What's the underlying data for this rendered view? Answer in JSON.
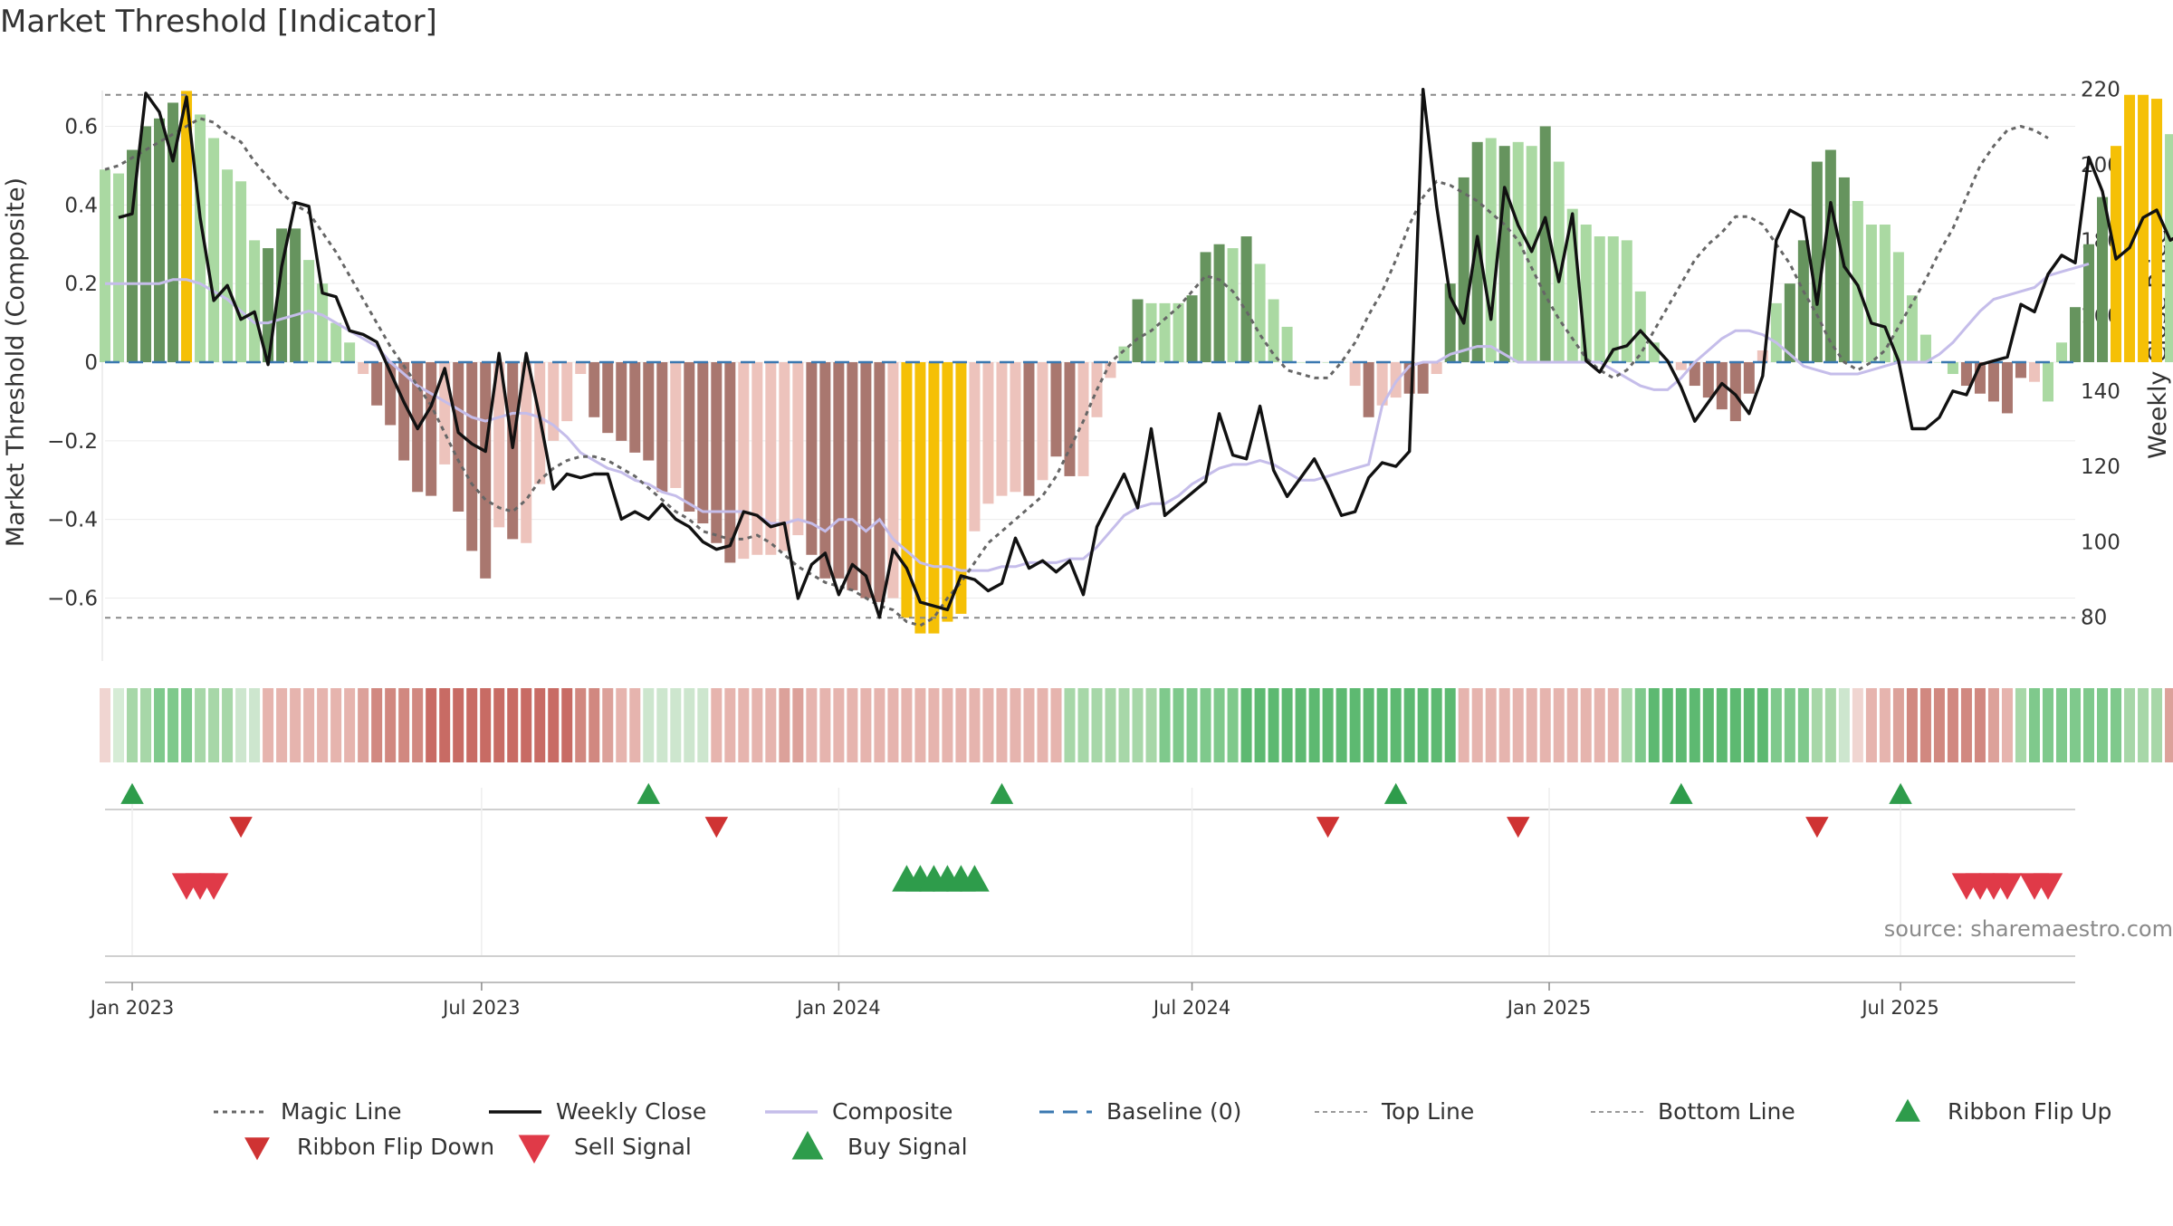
{
  "title": "Market Threshold [Indicator]",
  "source": "source: sharemaestro.com",
  "chart_data": {
    "type": "bar",
    "title": "Market Threshold [Indicator]",
    "left_axis": {
      "label": "Market Threshold (Composite)",
      "range": [
        -0.76,
        0.76
      ],
      "ticks": [
        {
          "v": 0.6,
          "t": "0.6"
        },
        {
          "v": 0.4,
          "t": "0.4"
        },
        {
          "v": 0.2,
          "t": "0.2"
        },
        {
          "v": 0,
          "t": "0"
        },
        {
          "v": -0.2,
          "t": "−0.2"
        },
        {
          "v": -0.4,
          "t": "−0.4"
        },
        {
          "v": -0.6,
          "t": "−0.6"
        }
      ]
    },
    "right_axis": {
      "label": "Weekly Close Price",
      "range": [
        68.4,
        226.9
      ],
      "ticks": [
        {
          "v": 220,
          "t": "220"
        },
        {
          "v": 200,
          "t": "200"
        },
        {
          "v": 180,
          "t": "180"
        },
        {
          "v": 160,
          "t": "160"
        },
        {
          "v": 140,
          "t": "140"
        },
        {
          "v": 120,
          "t": "120"
        },
        {
          "v": 100,
          "t": "100"
        },
        {
          "v": 80,
          "t": "80"
        }
      ]
    },
    "x_axis": {
      "start": "2022-12-19",
      "end": "2025-09-29",
      "ticks": [
        {
          "date": "2023-01-02",
          "label": "Jan 2023"
        },
        {
          "date": "2023-07-01",
          "label": "Jul 2023"
        },
        {
          "date": "2024-01-01",
          "label": "Jan 2024"
        },
        {
          "date": "2024-07-01",
          "label": "Jul 2024"
        },
        {
          "date": "2025-01-01",
          "label": "Jan 2025"
        },
        {
          "date": "2025-07-01",
          "label": "Jul 2025"
        }
      ]
    },
    "top_line": 0.68,
    "bottom_line": -0.65,
    "baseline": 0,
    "bars": {
      "start": "2022-12-19",
      "interval_days": 7,
      "composite": [
        0.49,
        0.48,
        0.54,
        0.6,
        0.62,
        0.66,
        0.69,
        0.63,
        0.57,
        0.49,
        0.46,
        0.31,
        0.29,
        0.34,
        0.34,
        0.26,
        0.2,
        0.1,
        0.05,
        -0.03,
        -0.11,
        -0.16,
        -0.25,
        -0.33,
        -0.34,
        -0.26,
        -0.38,
        -0.48,
        -0.55,
        -0.42,
        -0.45,
        -0.46,
        -0.31,
        -0.2,
        -0.15,
        -0.03,
        -0.14,
        -0.18,
        -0.2,
        -0.23,
        -0.25,
        -0.33,
        -0.32,
        -0.38,
        -0.41,
        -0.46,
        -0.51,
        -0.5,
        -0.49,
        -0.49,
        -0.48,
        -0.44,
        -0.49,
        -0.55,
        -0.55,
        -0.58,
        -0.6,
        -0.61,
        -0.6,
        -0.65,
        -0.69,
        -0.69,
        -0.66,
        -0.64,
        -0.43,
        -0.36,
        -0.34,
        -0.33,
        -0.34,
        -0.3,
        -0.24,
        -0.29,
        -0.29,
        -0.14,
        -0.04,
        0.04,
        0.16,
        0.15,
        0.15,
        0.15,
        0.17,
        0.28,
        0.3,
        0.29,
        0.32,
        0.25,
        0.16,
        0.09,
        0.0,
        0.0,
        0.0,
        0.0,
        -0.06,
        -0.14,
        -0.11,
        -0.09,
        -0.08,
        -0.08,
        -0.03,
        0.2,
        0.47,
        0.56,
        0.57,
        0.55,
        0.56,
        0.55,
        0.6,
        0.51,
        0.39,
        0.35,
        0.32,
        0.32,
        0.31,
        0.18,
        0.05,
        0.0,
        -0.02,
        -0.06,
        -0.09,
        -0.12,
        -0.15,
        -0.08,
        0.03,
        0.15,
        0.2,
        0.31,
        0.51,
        0.54,
        0.47,
        0.41,
        0.35,
        0.35,
        0.28,
        0.17,
        0.07,
        0.0,
        -0.03,
        -0.06,
        -0.08,
        -0.1,
        -0.13,
        -0.04,
        -0.05,
        -0.1,
        0.05,
        0.14,
        0.3,
        0.42,
        0.55,
        0.68,
        0.68,
        0.67,
        0.58,
        0.65,
        0.68,
        0.58,
        0.52,
        0.57
      ],
      "colors": [
        "#aad9a2",
        "#aad9a2",
        "#66945e",
        "#66945e",
        "#66945e",
        "#66945e",
        "#f5c006",
        "#aad9a2",
        "#aad9a2",
        "#aad9a2",
        "#aad9a2",
        "#aad9a2",
        "#66945e",
        "#66945e",
        "#66945e",
        "#aad9a2",
        "#aad9a2",
        "#aad9a2",
        "#aad9a2",
        "#edc3bc",
        "#a9776f",
        "#a9776f",
        "#a9776f",
        "#a9776f",
        "#a9776f",
        "#edc3bc",
        "#a9776f",
        "#a9776f",
        "#a9776f",
        "#edc3bc",
        "#a9776f",
        "#edc3bc",
        "#edc3bc",
        "#edc3bc",
        "#edc3bc",
        "#edc3bc",
        "#a9776f",
        "#a9776f",
        "#a9776f",
        "#a9776f",
        "#a9776f",
        "#a9776f",
        "#edc3bc",
        "#a9776f",
        "#a9776f",
        "#a9776f",
        "#a9776f",
        "#edc3bc",
        "#edc3bc",
        "#edc3bc",
        "#edc3bc",
        "#edc3bc",
        "#a9776f",
        "#a9776f",
        "#a9776f",
        "#a9776f",
        "#a9776f",
        "#a9776f",
        "#edc3bc",
        "#f5c006",
        "#f5c006",
        "#f5c006",
        "#f5c006",
        "#f5c006",
        "#edc3bc",
        "#edc3bc",
        "#edc3bc",
        "#edc3bc",
        "#a9776f",
        "#edc3bc",
        "#a9776f",
        "#a9776f",
        "#edc3bc",
        "#edc3bc",
        "#edc3bc",
        "#aad9a2",
        "#66945e",
        "#aad9a2",
        "#aad9a2",
        "#aad9a2",
        "#66945e",
        "#66945e",
        "#66945e",
        "#aad9a2",
        "#66945e",
        "#aad9a2",
        "#aad9a2",
        "#aad9a2",
        "#aad9a2",
        "#aad9a2",
        "#aad9a2",
        "#aad9a2",
        "#edc3bc",
        "#a9776f",
        "#edc3bc",
        "#edc3bc",
        "#a9776f",
        "#a9776f",
        "#edc3bc",
        "#66945e",
        "#66945e",
        "#66945e",
        "#aad9a2",
        "#66945e",
        "#aad9a2",
        "#aad9a2",
        "#66945e",
        "#aad9a2",
        "#aad9a2",
        "#aad9a2",
        "#aad9a2",
        "#aad9a2",
        "#aad9a2",
        "#aad9a2",
        "#aad9a2",
        "#aad9a2",
        "#edc3bc",
        "#a9776f",
        "#a9776f",
        "#a9776f",
        "#a9776f",
        "#a9776f",
        "#edc3bc",
        "#aad9a2",
        "#66945e",
        "#66945e",
        "#66945e",
        "#66945e",
        "#66945e",
        "#aad9a2",
        "#aad9a2",
        "#aad9a2",
        "#aad9a2",
        "#aad9a2",
        "#aad9a2",
        "#aad9a2",
        "#aad9a2",
        "#a9776f",
        "#a9776f",
        "#a9776f",
        "#a9776f",
        "#a9776f",
        "#edc3bc",
        "#aad9a2",
        "#aad9a2",
        "#66945e",
        "#66945e",
        "#66945e",
        "#f5c006",
        "#f5c006",
        "#f5c006",
        "#f5c006",
        "#aad9a2",
        "#f5c006",
        "#f5c006",
        "#aad9a2",
        "#aad9a2",
        "#66945e"
      ]
    },
    "weekly_close": {
      "start": "2022-12-26",
      "interval_days": 7,
      "values": [
        186,
        187,
        219,
        214,
        201,
        218,
        186,
        164,
        168,
        159,
        161,
        147,
        173,
        190,
        189,
        166,
        165,
        156,
        155,
        153,
        145,
        137,
        130,
        136,
        146,
        129,
        126,
        124,
        150,
        125,
        150,
        133,
        114,
        118,
        117,
        118,
        118,
        106,
        108,
        106,
        110,
        106,
        104,
        100,
        98,
        99,
        108,
        107,
        104,
        105,
        85,
        94,
        97,
        86,
        94,
        91,
        80,
        98,
        93,
        84,
        83,
        82,
        91,
        90,
        87,
        89,
        101,
        93,
        95,
        92,
        95,
        86,
        104,
        111,
        118,
        109,
        130,
        107,
        110,
        113,
        116,
        134,
        123,
        122,
        136,
        119,
        112,
        117,
        122,
        115,
        107,
        108,
        117,
        121,
        120,
        124,
        220,
        189,
        165,
        158,
        181,
        159,
        194,
        184,
        177,
        186,
        169,
        187,
        148,
        145,
        151,
        152,
        156,
        152,
        148,
        141,
        132,
        137,
        142,
        139,
        134,
        144,
        180,
        188,
        186,
        163,
        190,
        173,
        168,
        158,
        157,
        148,
        130,
        130,
        133,
        140,
        139,
        147,
        148,
        149,
        163,
        161,
        171,
        176,
        174,
        202,
        193,
        175,
        178,
        186,
        188,
        180,
        182,
        176,
        207
      ]
    },
    "magic_line": {
      "start": "2022-12-19",
      "interval_days": 7,
      "values": [
        0.49,
        0.5,
        0.52,
        0.54,
        0.56,
        0.58,
        0.6,
        0.62,
        0.61,
        0.58,
        0.56,
        0.51,
        0.47,
        0.43,
        0.4,
        0.38,
        0.33,
        0.28,
        0.22,
        0.16,
        0.1,
        0.04,
        -0.01,
        -0.06,
        -0.11,
        -0.18,
        -0.25,
        -0.31,
        -0.35,
        -0.37,
        -0.38,
        -0.35,
        -0.3,
        -0.27,
        -0.25,
        -0.24,
        -0.24,
        -0.25,
        -0.27,
        -0.29,
        -0.32,
        -0.35,
        -0.38,
        -0.4,
        -0.43,
        -0.44,
        -0.45,
        -0.45,
        -0.44,
        -0.46,
        -0.49,
        -0.52,
        -0.54,
        -0.56,
        -0.57,
        -0.58,
        -0.6,
        -0.62,
        -0.63,
        -0.66,
        -0.67,
        -0.65,
        -0.6,
        -0.56,
        -0.51,
        -0.46,
        -0.43,
        -0.4,
        -0.37,
        -0.34,
        -0.29,
        -0.22,
        -0.15,
        -0.07,
        0.0,
        0.03,
        0.06,
        0.08,
        0.11,
        0.14,
        0.18,
        0.22,
        0.21,
        0.18,
        0.13,
        0.07,
        0.02,
        -0.02,
        -0.03,
        -0.04,
        -0.04,
        0.0,
        0.05,
        0.12,
        0.18,
        0.26,
        0.35,
        0.42,
        0.46,
        0.45,
        0.43,
        0.41,
        0.38,
        0.35,
        0.31,
        0.24,
        0.17,
        0.11,
        0.06,
        0.01,
        -0.02,
        -0.04,
        -0.02,
        0.02,
        0.08,
        0.14,
        0.2,
        0.26,
        0.3,
        0.33,
        0.37,
        0.37,
        0.35,
        0.3,
        0.25,
        0.18,
        0.12,
        0.05,
        0.0,
        -0.02,
        0.0,
        0.03,
        0.09,
        0.15,
        0.21,
        0.28,
        0.34,
        0.42,
        0.5,
        0.55,
        0.59,
        0.6,
        0.59,
        0.57
      ]
    },
    "composite_line": {
      "start": "2022-12-19",
      "interval_days": 7,
      "values": [
        0.2,
        0.2,
        0.2,
        0.2,
        0.2,
        0.21,
        0.21,
        0.2,
        0.18,
        0.16,
        0.13,
        0.1,
        0.1,
        0.11,
        0.12,
        0.13,
        0.12,
        0.1,
        0.08,
        0.06,
        0.04,
        0.0,
        -0.03,
        -0.06,
        -0.08,
        -0.1,
        -0.12,
        -0.14,
        -0.15,
        -0.14,
        -0.13,
        -0.13,
        -0.14,
        -0.16,
        -0.19,
        -0.23,
        -0.25,
        -0.27,
        -0.28,
        -0.3,
        -0.31,
        -0.33,
        -0.34,
        -0.36,
        -0.38,
        -0.38,
        -0.38,
        -0.38,
        -0.39,
        -0.41,
        -0.41,
        -0.4,
        -0.41,
        -0.43,
        -0.4,
        -0.4,
        -0.43,
        -0.4,
        -0.45,
        -0.48,
        -0.51,
        -0.52,
        -0.52,
        -0.53,
        -0.53,
        -0.53,
        -0.52,
        -0.52,
        -0.51,
        -0.51,
        -0.51,
        -0.5,
        -0.5,
        -0.47,
        -0.43,
        -0.39,
        -0.37,
        -0.36,
        -0.36,
        -0.34,
        -0.31,
        -0.29,
        -0.27,
        -0.26,
        -0.26,
        -0.25,
        -0.26,
        -0.28,
        -0.3,
        -0.3,
        -0.29,
        -0.28,
        -0.27,
        -0.26,
        -0.11,
        -0.05,
        -0.01,
        0.0,
        0.0,
        0.02,
        0.03,
        0.04,
        0.04,
        0.02,
        0.0,
        0.0,
        0.0,
        0.0,
        0.0,
        0.0,
        0.0,
        -0.02,
        -0.04,
        -0.06,
        -0.07,
        -0.07,
        -0.04,
        0.0,
        0.03,
        0.06,
        0.08,
        0.08,
        0.07,
        0.05,
        0.02,
        -0.01,
        -0.02,
        -0.03,
        -0.03,
        -0.03,
        -0.02,
        -0.01,
        0.0,
        0.0,
        0.0,
        0.02,
        0.05,
        0.09,
        0.13,
        0.16,
        0.17,
        0.18,
        0.19,
        0.22,
        0.23,
        0.24,
        0.25
      ]
    },
    "ribbon": {
      "start": "2022-12-19",
      "interval_days": 7,
      "colors": [
        "#f0d5d1",
        "#d6ecd6",
        "#a7d7a8",
        "#a7d7a8",
        "#7fc98c",
        "#7fc98c",
        "#7fc98c",
        "#a7d7a8",
        "#a7d7a8",
        "#a7d7a8",
        "#cde6ce",
        "#cde6ce",
        "#e6b4ae",
        "#e6b4ae",
        "#e6b4ae",
        "#e6b4ae",
        "#e6b4ae",
        "#e6b4ae",
        "#e6b4ae",
        "#dca19a",
        "#d18880",
        "#d18880",
        "#d18880",
        "#d18880",
        "#c86b64",
        "#c86b64",
        "#c86b64",
        "#c86b64",
        "#c86b64",
        "#c86b64",
        "#c86b64",
        "#c86b64",
        "#c86b64",
        "#c86b64",
        "#c86b64",
        "#d18880",
        "#d18880",
        "#dca19a",
        "#e6b4ae",
        "#e6b4ae",
        "#cde6ce",
        "#cde6ce",
        "#cde6ce",
        "#cde6ce",
        "#cde6ce",
        "#e6b4ae",
        "#e6b4ae",
        "#e6b4ae",
        "#e6b4ae",
        "#e6b4ae",
        "#dca19a",
        "#dca19a",
        "#e6b4ae",
        "#e6b4ae",
        "#e6b4ae",
        "#e6b4ae",
        "#e6b4ae",
        "#e6b4ae",
        "#e6b4ae",
        "#e6b4ae",
        "#e6b4ae",
        "#e6b4ae",
        "#e6b4ae",
        "#e6b4ae",
        "#e6b4ae",
        "#e6b4ae",
        "#e6b4ae",
        "#e6b4ae",
        "#e6b4ae",
        "#e6b4ae",
        "#e6b4ae",
        "#a7d7a8",
        "#a7d7a8",
        "#a7d7a8",
        "#a7d7a8",
        "#a7d7a8",
        "#a7d7a8",
        "#a7d7a8",
        "#7fc98c",
        "#7fc98c",
        "#7fc98c",
        "#7fc98c",
        "#7fc98c",
        "#7fc98c",
        "#5db971",
        "#5db971",
        "#5db971",
        "#5db971",
        "#5db971",
        "#5db971",
        "#5db971",
        "#5db971",
        "#5db971",
        "#5db971",
        "#5db971",
        "#5db971",
        "#5db971",
        "#5db971",
        "#5db971",
        "#5db971",
        "#e6b4ae",
        "#e6b4ae",
        "#e6b4ae",
        "#e6b4ae",
        "#e6b4ae",
        "#e6b4ae",
        "#e6b4ae",
        "#e6b4ae",
        "#e6b4ae",
        "#e6b4ae",
        "#e6b4ae",
        "#e6b4ae",
        "#a7d7a8",
        "#7fc98c",
        "#5db971",
        "#5db971",
        "#5db971",
        "#5db971",
        "#5db971",
        "#5db971",
        "#5db971",
        "#5db971",
        "#5db971",
        "#7fc98c",
        "#7fc98c",
        "#7fc98c",
        "#a7d7a8",
        "#a7d7a8",
        "#cde6ce",
        "#f0d5d1",
        "#e6b4ae",
        "#e6b4ae",
        "#dca19a",
        "#d18880",
        "#d18880",
        "#d18880",
        "#d18880",
        "#d18880",
        "#d18880",
        "#dca19a",
        "#e6b4ae",
        "#a7d7a8",
        "#7fc98c",
        "#7fc98c",
        "#7fc98c",
        "#7fc98c",
        "#7fc98c",
        "#7fc98c",
        "#7fc98c",
        "#a7d7a8",
        "#a7d7a8",
        "#a7d7a8",
        "#dca19a",
        "#d18880",
        "#d18880",
        "#d18880",
        "#d18880",
        "#d18880",
        "#d18880",
        "#d18880",
        "#d18880",
        "#d18880",
        "#d18880",
        "#d18880",
        "#d18880",
        "#d18880",
        "#a7d7a8",
        "#7fc98c",
        "#7fc98c",
        "#5db971",
        "#5db971",
        "#5db971",
        "#5db971",
        "#5db971",
        "#5db971",
        "#5db971",
        "#5db971",
        "#5db971",
        "#7fc98c",
        "#7fc98c",
        "#a7d7a8"
      ]
    },
    "ribbon_flip_up": [
      "2023-01-02",
      "2023-09-25",
      "2024-03-25",
      "2024-10-14",
      "2025-03-10",
      "2025-07-01"
    ],
    "ribbon_flip_down": [
      "2023-02-27",
      "2023-10-30",
      "2024-09-09",
      "2024-12-16",
      "2025-05-19"
    ],
    "sell_signal": [
      "2023-01-30",
      "2023-02-06",
      "2023-02-13",
      "2025-08-04",
      "2025-08-11",
      "2025-08-18",
      "2025-08-25",
      "2025-09-08",
      "2025-09-15"
    ],
    "buy_signal": [
      "2024-02-05",
      "2024-02-12",
      "2024-02-19",
      "2024-02-26",
      "2024-03-04",
      "2024-03-11"
    ],
    "legend": [
      {
        "name": "Magic Line",
        "kind": "dotted",
        "color": "#666666"
      },
      {
        "name": "Weekly Close",
        "kind": "solid",
        "color": "#111111"
      },
      {
        "name": "Composite",
        "kind": "solid",
        "color": "#c5bdea"
      },
      {
        "name": "Baseline (0)",
        "kind": "dashed",
        "color": "#3a78b0"
      },
      {
        "name": "Top Line",
        "kind": "dashed-gray",
        "color": "#9a9a9a"
      },
      {
        "name": "Bottom Line",
        "kind": "dashed-gray",
        "color": "#9a9a9a"
      },
      {
        "name": "Ribbon Flip Up",
        "kind": "tri-up",
        "color": "#2e9c4b"
      },
      {
        "name": "Ribbon Flip Down",
        "kind": "tri-down",
        "color": "#cf3333"
      },
      {
        "name": "Sell Signal",
        "kind": "tri-down-big",
        "color": "#e03a48"
      },
      {
        "name": "Buy Signal",
        "kind": "tri-up-big",
        "color": "#2e9c4b"
      }
    ]
  }
}
